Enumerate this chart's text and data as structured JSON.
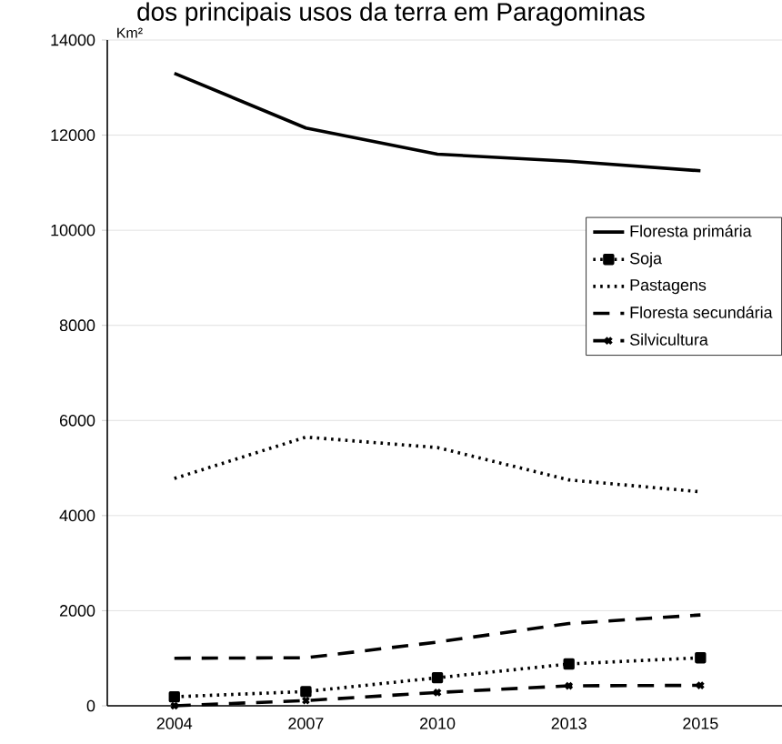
{
  "chart_data": {
    "type": "line",
    "title": "dos principais usos da terra em Paragominas",
    "ylabel": "Km²",
    "categories": [
      "2004",
      "2007",
      "2010",
      "2013",
      "2015"
    ],
    "series": [
      {
        "name": "Floresta primária",
        "color": "#000000",
        "line_style": "solid",
        "marker": "none",
        "values": [
          13300,
          12150,
          11600,
          11450,
          11250
        ]
      },
      {
        "name": "Soja",
        "color": "#000000",
        "line_style": "dotted",
        "marker": "square",
        "values": [
          190,
          300,
          590,
          880,
          1010
        ]
      },
      {
        "name": "Pastagens",
        "color": "#000000",
        "line_style": "dotted",
        "marker": "none",
        "values": [
          4780,
          5650,
          5430,
          4750,
          4500
        ]
      },
      {
        "name": "Floresta secundária",
        "color": "#000000",
        "line_style": "dashed",
        "marker": "none",
        "values": [
          1000,
          1010,
          1340,
          1730,
          1910
        ]
      },
      {
        "name": "Silvicultura",
        "color": "#000000",
        "line_style": "dashed",
        "marker": "cross",
        "values": [
          0,
          110,
          280,
          420,
          430
        ]
      }
    ],
    "ylim": [
      0,
      14000
    ],
    "yticks": [
      0,
      2000,
      4000,
      6000,
      8000,
      10000,
      12000,
      14000
    ],
    "grid": "y",
    "legend": "right"
  }
}
